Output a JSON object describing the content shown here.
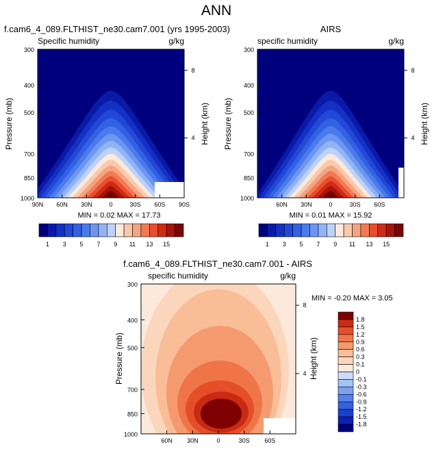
{
  "page_title": "ANN",
  "colors": {
    "abs_palette": [
      "#00007f",
      "#0a1aa8",
      "#1530c4",
      "#2148d6",
      "#3460e2",
      "#4a7aec",
      "#6b97f2",
      "#92b4f6",
      "#bed2f9",
      "#fbeadb",
      "#f9c9ad",
      "#f6a480",
      "#f17a55",
      "#e84e2f",
      "#cf2a16",
      "#a8130a",
      "#7a0506"
    ],
    "diff_palette": [
      "#00007f",
      "#0e22b2",
      "#1d3fce",
      "#3560e0",
      "#5681ea",
      "#7ba2f1",
      "#a4c2f6",
      "#cadcf9",
      "#fbeadb",
      "#fbd6bd",
      "#f9bd98",
      "#f59a6f",
      "#ef7548",
      "#e44f2a",
      "#c92a13",
      "#7f0000"
    ],
    "missing": "#ffffff"
  },
  "panels": [
    {
      "id": "model",
      "title": "f.cam6_4_089.FLTHIST_ne30.cam7.001 (yrs 1995-2003)",
      "left_string": "Specific humidity",
      "right_string": "g/kg",
      "ylabel": "Pressure (mb)",
      "ylabel_right": "Height (km)",
      "y_ticks": [
        "300",
        "400",
        "500",
        "700",
        "850",
        "1000"
      ],
      "x_ticks": [
        "90N",
        "60N",
        "30N",
        "0",
        "30S",
        "60S",
        "90S"
      ],
      "height_ticks": [
        "8",
        "4"
      ],
      "stats": "MIN =  0.02   MAX =  17.73",
      "colorbar_labels": [
        "1",
        "3",
        "5",
        "7",
        "9",
        "11",
        "13",
        "15"
      ]
    },
    {
      "id": "obs",
      "title": "AIRS",
      "left_string": "specific humidity",
      "right_string": "g/kg",
      "ylabel": "Pressure (mb)",
      "ylabel_right": "Height (km)",
      "y_ticks": [
        "300",
        "400",
        "500",
        "700",
        "850",
        "1000"
      ],
      "x_ticks": [
        "60N",
        "30N",
        "0",
        "30S",
        "60S"
      ],
      "height_ticks": [
        "8",
        "4"
      ],
      "stats": "MIN =  0.01   MAX =  15.92",
      "colorbar_labels": [
        "1",
        "3",
        "5",
        "7",
        "9",
        "11",
        "13",
        "15"
      ]
    },
    {
      "id": "diff",
      "title": "f.cam6_4_089.FLTHIST_ne30.cam7.001 - AIRS",
      "left_string": "specific humidity",
      "right_string": "g/kg",
      "ylabel": "Pressure (mb)",
      "ylabel_right": "Height (km)",
      "y_ticks": [
        "300",
        "400",
        "500",
        "700",
        "850",
        "1000"
      ],
      "x_ticks": [
        "60N",
        "30N",
        "0",
        "30S",
        "60S"
      ],
      "height_ticks": [
        "8",
        "4"
      ],
      "stats": "MIN = -0.20  MAX =  3.05",
      "colorbar_labels": [
        "1.8",
        "1.5",
        "1.2",
        "0.9",
        "0.6",
        "0.3",
        "0.1",
        "0",
        "-0.1",
        "-0.3",
        "-0.6",
        "-0.9",
        "-1.2",
        "-1.5",
        "-1.8"
      ]
    }
  ],
  "chart_data": [
    {
      "type": "heatmap",
      "title": "f.cam6_4_089.FLTHIST_ne30.cam7.001 (yrs 1995-2003)",
      "xlabel": "",
      "ylabel": "Pressure (mb)",
      "units": "g/kg",
      "x_range": [
        "90N",
        "90S"
      ],
      "y_range": [
        1000,
        300
      ],
      "y_scale": "log",
      "levels": [
        1,
        2,
        3,
        4,
        5,
        6,
        7,
        8,
        9,
        10,
        11,
        12,
        13,
        14,
        15,
        16
      ],
      "min": 0.02,
      "max": 17.73,
      "peak_location": {
        "latitude": 0,
        "pressure": 1000
      }
    },
    {
      "type": "heatmap",
      "title": "AIRS",
      "xlabel": "",
      "ylabel": "Pressure (mb)",
      "units": "g/kg",
      "y_range": [
        1000,
        300
      ],
      "y_scale": "log",
      "levels": [
        1,
        2,
        3,
        4,
        5,
        6,
        7,
        8,
        9,
        10,
        11,
        12,
        13,
        14,
        15,
        16
      ],
      "min": 0.01,
      "max": 15.92,
      "peak_location": {
        "latitude": 0,
        "pressure": 1000
      }
    },
    {
      "type": "heatmap",
      "title": "f.cam6_4_089.FLTHIST_ne30.cam7.001 - AIRS",
      "xlabel": "",
      "ylabel": "Pressure (mb)",
      "units": "g/kg",
      "y_range": [
        1000,
        300
      ],
      "y_scale": "log",
      "levels": [
        -1.8,
        -1.5,
        -1.2,
        -0.9,
        -0.6,
        -0.3,
        -0.1,
        0,
        0.1,
        0.3,
        0.6,
        0.9,
        1.2,
        1.5,
        1.8
      ],
      "min": -0.2,
      "max": 3.05,
      "peak_location": {
        "latitude": 0,
        "pressure": 850
      }
    }
  ]
}
